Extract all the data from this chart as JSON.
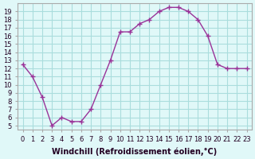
{
  "x": [
    0,
    1,
    2,
    3,
    4,
    5,
    6,
    7,
    8,
    9,
    10,
    11,
    12,
    13,
    14,
    15,
    16,
    17,
    18,
    19,
    20,
    21,
    22,
    23
  ],
  "y": [
    12.5,
    11,
    8.5,
    5,
    6,
    5.5,
    5.5,
    7,
    10,
    13,
    16.5,
    16.5,
    17.5,
    18,
    19,
    19.5,
    19.5,
    19,
    18,
    16,
    12.5,
    12,
    12,
    12
  ],
  "line_color": "#993399",
  "marker_color": "#993399",
  "background_color": "#e0f8f8",
  "grid_color": "#aadddd",
  "xlabel": "Windchill (Refroidissement éolien,°C)",
  "xlim": [
    -0.5,
    23.5
  ],
  "ylim": [
    4.5,
    20
  ],
  "yticks": [
    5,
    6,
    7,
    8,
    9,
    10,
    11,
    12,
    13,
    14,
    15,
    16,
    17,
    18,
    19
  ],
  "xticks": [
    0,
    1,
    2,
    3,
    4,
    5,
    6,
    7,
    8,
    9,
    10,
    11,
    12,
    13,
    14,
    15,
    16,
    17,
    18,
    19,
    20,
    21,
    22,
    23
  ],
  "tick_fontsize": 6,
  "xlabel_fontsize": 7
}
